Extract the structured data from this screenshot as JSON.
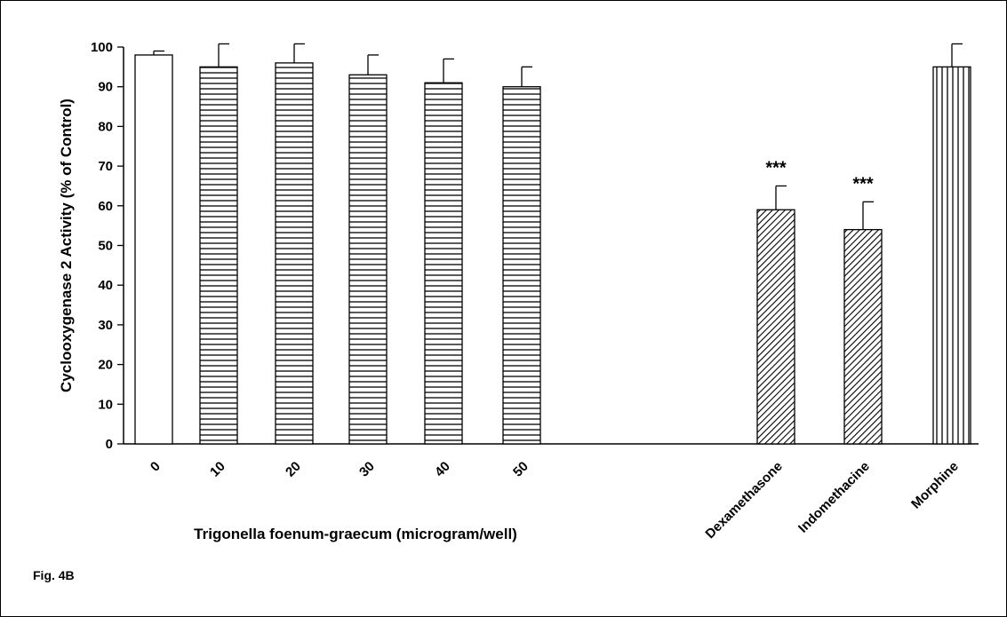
{
  "chart_data": {
    "type": "bar",
    "title": "",
    "ylabel": "Cyclooxygenase 2 Activity (% of Control)",
    "xlabel": "Trigonella foenum-graecum (microgram/well)",
    "ylim": [
      0,
      100
    ],
    "yticks": [
      0,
      10,
      20,
      30,
      40,
      50,
      60,
      70,
      80,
      90,
      100
    ],
    "categories": [
      "0",
      "10",
      "20",
      "30",
      "40",
      "50",
      "Dexamethasone",
      "Indomethacine",
      "Morphine"
    ],
    "values": [
      98,
      95,
      96,
      93,
      91,
      90,
      59,
      54,
      95
    ],
    "errors": [
      1,
      6,
      5,
      5,
      6,
      5,
      6,
      7,
      6
    ],
    "patterns": [
      "none",
      "horizontal",
      "horizontal",
      "horizontal",
      "horizontal",
      "horizontal",
      "diagonal",
      "diagonal",
      "vertical"
    ],
    "annotations": [
      "",
      "",
      "",
      "",
      "",
      "",
      "***",
      "***",
      ""
    ],
    "grid": false,
    "legend": "none"
  },
  "figure_label": "Fig. 4B"
}
